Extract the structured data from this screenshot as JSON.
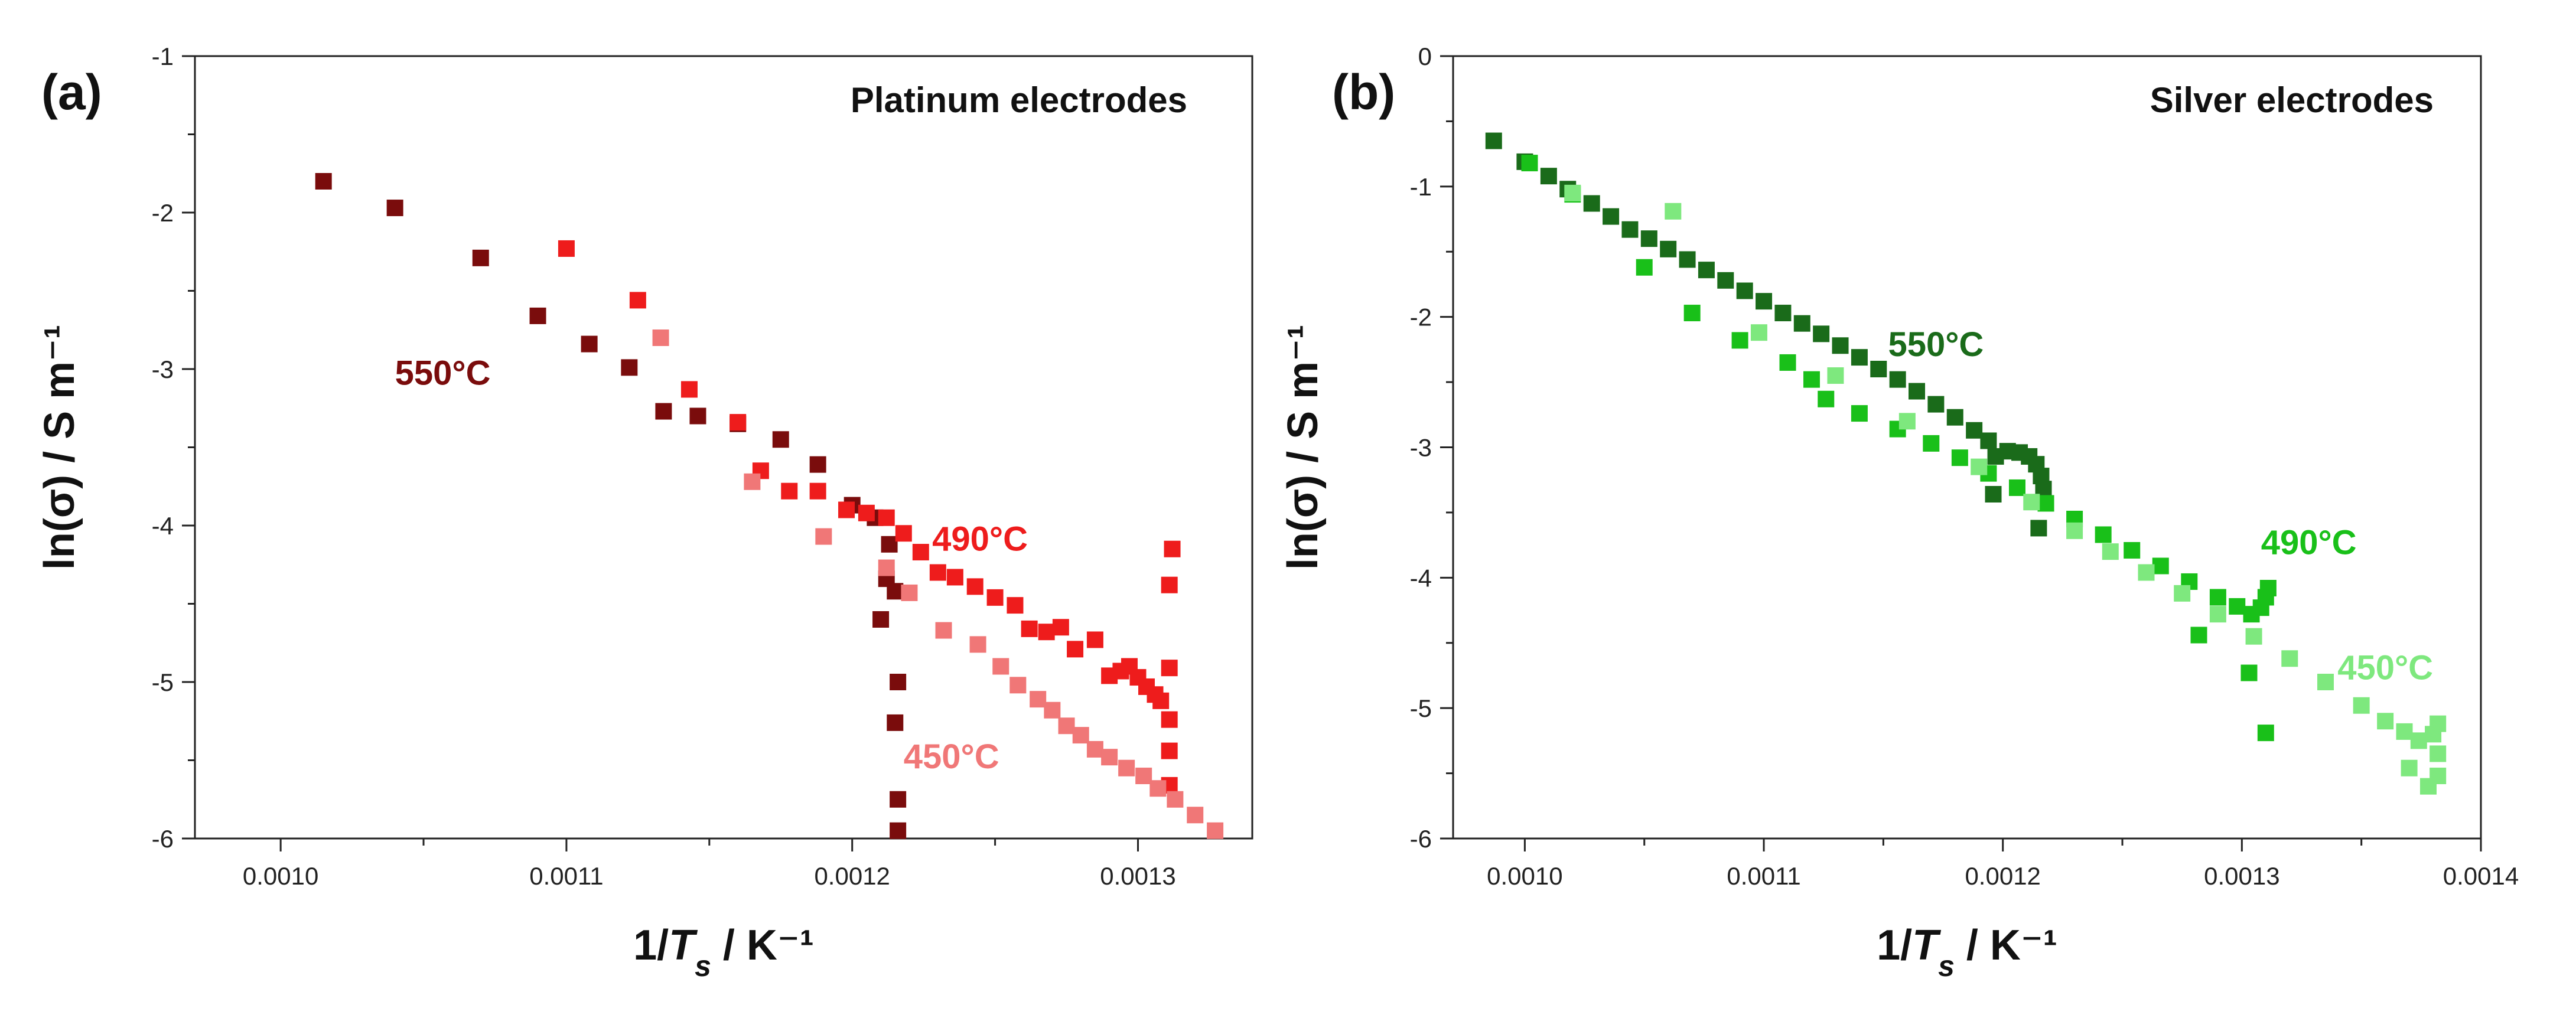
{
  "chart_data": [
    {
      "type": "scatter",
      "panel_label": "(a)",
      "title": "Platinum electrodes",
      "xlabel": "1/T_s / K⁻¹",
      "ylabel": "ln(σ) / S m⁻¹",
      "xlim": [
        0.00097,
        0.00134
      ],
      "ylim": [
        -6,
        -1
      ],
      "xticks": [
        0.001,
        0.0011,
        0.0012,
        0.0013
      ],
      "xtick_labels": [
        "0.0010",
        "0.0011",
        "0.0012",
        "0.0013"
      ],
      "yticks": [
        -6,
        -5,
        -4,
        -3,
        -2,
        -1
      ],
      "ytick_labels": [
        "-6",
        "-5",
        "-4",
        "-3",
        "-2",
        "-1"
      ],
      "grid": false,
      "series": [
        {
          "name": "550°C",
          "color": "#7a0c0c",
          "label_at": [
            0.00104,
            -3.1
          ],
          "points": [
            [
              0.001015,
              -1.8
            ],
            [
              0.00104,
              -1.97
            ],
            [
              0.00107,
              -2.29
            ],
            [
              0.00109,
              -2.66
            ],
            [
              0.001108,
              -2.84
            ],
            [
              0.001122,
              -2.99
            ],
            [
              0.001134,
              -3.27
            ],
            [
              0.001146,
              -3.3
            ],
            [
              0.00116,
              -3.35
            ],
            [
              0.001175,
              -3.45
            ],
            [
              0.001188,
              -3.61
            ],
            [
              0.0012,
              -3.87
            ],
            [
              0.001208,
              -3.95
            ],
            [
              0.001213,
              -4.12
            ],
            [
              0.001212,
              -4.34
            ],
            [
              0.00121,
              -4.6
            ],
            [
              0.001215,
              -4.42
            ],
            [
              0.001216,
              -5.0
            ],
            [
              0.001215,
              -5.26
            ],
            [
              0.001216,
              -5.75
            ],
            [
              0.001216,
              -5.95
            ]
          ]
        },
        {
          "name": "490°C",
          "color": "#ee1c1c",
          "label_at": [
            0.001228,
            -4.16
          ],
          "points": [
            [
              0.0011,
              -2.23
            ],
            [
              0.001125,
              -2.56
            ],
            [
              0.001143,
              -3.13
            ],
            [
              0.00116,
              -3.34
            ],
            [
              0.001168,
              -3.65
            ],
            [
              0.001178,
              -3.78
            ],
            [
              0.001188,
              -3.78
            ],
            [
              0.001198,
              -3.9
            ],
            [
              0.001205,
              -3.92
            ],
            [
              0.001212,
              -3.95
            ],
            [
              0.001218,
              -4.05
            ],
            [
              0.001224,
              -4.17
            ],
            [
              0.00123,
              -4.3
            ],
            [
              0.001236,
              -4.33
            ],
            [
              0.001243,
              -4.39
            ],
            [
              0.00125,
              -4.46
            ],
            [
              0.001257,
              -4.51
            ],
            [
              0.001262,
              -4.66
            ],
            [
              0.001268,
              -4.68
            ],
            [
              0.001273,
              -4.65
            ],
            [
              0.001278,
              -4.79
            ],
            [
              0.001285,
              -4.73
            ],
            [
              0.00129,
              -4.96
            ],
            [
              0.001294,
              -4.93
            ],
            [
              0.001297,
              -4.9
            ],
            [
              0.0013,
              -4.97
            ],
            [
              0.001303,
              -5.03
            ],
            [
              0.001306,
              -5.08
            ],
            [
              0.001308,
              -5.12
            ],
            [
              0.001311,
              -5.24
            ],
            [
              0.001311,
              -5.44
            ],
            [
              0.001311,
              -5.66
            ],
            [
              0.001311,
              -4.91
            ],
            [
              0.001311,
              -4.38
            ],
            [
              0.001312,
              -4.15
            ]
          ]
        },
        {
          "name": "450°C",
          "color": "#f07777",
          "label_at": [
            0.001218,
            -5.55
          ],
          "points": [
            [
              0.001133,
              -2.8
            ],
            [
              0.001165,
              -3.72
            ],
            [
              0.00119,
              -4.07
            ],
            [
              0.001212,
              -4.27
            ],
            [
              0.00122,
              -4.43
            ],
            [
              0.001232,
              -4.67
            ],
            [
              0.001244,
              -4.76
            ],
            [
              0.001252,
              -4.9
            ],
            [
              0.001258,
              -5.02
            ],
            [
              0.001265,
              -5.11
            ],
            [
              0.00127,
              -5.18
            ],
            [
              0.001275,
              -5.28
            ],
            [
              0.00128,
              -5.34
            ],
            [
              0.001285,
              -5.43
            ],
            [
              0.00129,
              -5.48
            ],
            [
              0.001296,
              -5.55
            ],
            [
              0.001302,
              -5.6
            ],
            [
              0.001307,
              -5.68
            ],
            [
              0.001313,
              -5.75
            ],
            [
              0.00132,
              -5.85
            ],
            [
              0.001327,
              -5.95
            ]
          ]
        }
      ]
    },
    {
      "type": "scatter",
      "panel_label": "(b)",
      "title": "Silver electrodes",
      "xlabel": "1/T_s / K⁻¹",
      "ylabel": "ln(σ) / S m⁻¹",
      "xlim": [
        0.00097,
        0.0014
      ],
      "ylim": [
        -6,
        0
      ],
      "xticks": [
        0.001,
        0.0011,
        0.0012,
        0.0013,
        0.0014
      ],
      "xtick_labels": [
        "0.0010",
        "0.0011",
        "0.0012",
        "0.0013",
        "0.0014"
      ],
      "yticks": [
        -6,
        -5,
        -4,
        -3,
        -2,
        -1,
        0
      ],
      "ytick_labels": [
        "-6",
        "-5",
        "-4",
        "-3",
        "-2",
        "-1",
        "0"
      ],
      "grid": false,
      "series": [
        {
          "name": "550°C",
          "color": "#1a6b1a",
          "label_at": [
            0.001152,
            -2.3
          ],
          "points": [
            [
              0.000987,
              -0.65
            ],
            [
              0.001,
              -0.81
            ],
            [
              0.00101,
              -0.92
            ],
            [
              0.001018,
              -1.02
            ],
            [
              0.001028,
              -1.13
            ],
            [
              0.001036,
              -1.23
            ],
            [
              0.001044,
              -1.33
            ],
            [
              0.001052,
              -1.4
            ],
            [
              0.00106,
              -1.48
            ],
            [
              0.001068,
              -1.56
            ],
            [
              0.001076,
              -1.64
            ],
            [
              0.001084,
              -1.72
            ],
            [
              0.001092,
              -1.8
            ],
            [
              0.0011,
              -1.88
            ],
            [
              0.001108,
              -1.97
            ],
            [
              0.001116,
              -2.05
            ],
            [
              0.001124,
              -2.13
            ],
            [
              0.001132,
              -2.22
            ],
            [
              0.00114,
              -2.31
            ],
            [
              0.001148,
              -2.4
            ],
            [
              0.001156,
              -2.48
            ],
            [
              0.001164,
              -2.57
            ],
            [
              0.001172,
              -2.67
            ],
            [
              0.00118,
              -2.77
            ],
            [
              0.001188,
              -2.87
            ],
            [
              0.001194,
              -2.95
            ],
            [
              0.001197,
              -3.07
            ],
            [
              0.001202,
              -3.03
            ],
            [
              0.001207,
              -3.04
            ],
            [
              0.001211,
              -3.07
            ],
            [
              0.001214,
              -3.13
            ],
            [
              0.001216,
              -3.22
            ],
            [
              0.001217,
              -3.32
            ],
            [
              0.001196,
              -3.36
            ],
            [
              0.001215,
              -3.62
            ]
          ]
        },
        {
          "name": "490°C",
          "color": "#19c019",
          "label_at": [
            0.001308,
            -3.82
          ],
          "points": [
            [
              0.001002,
              -0.82
            ],
            [
              0.00102,
              -1.06
            ],
            [
              0.00105,
              -1.62
            ],
            [
              0.00107,
              -1.97
            ],
            [
              0.00109,
              -2.18
            ],
            [
              0.00111,
              -2.35
            ],
            [
              0.00112,
              -2.48
            ],
            [
              0.001126,
              -2.63
            ],
            [
              0.00114,
              -2.74
            ],
            [
              0.001156,
              -2.86
            ],
            [
              0.00117,
              -2.97
            ],
            [
              0.001182,
              -3.08
            ],
            [
              0.001194,
              -3.2
            ],
            [
              0.001206,
              -3.31
            ],
            [
              0.001218,
              -3.43
            ],
            [
              0.00123,
              -3.55
            ],
            [
              0.001242,
              -3.67
            ],
            [
              0.001254,
              -3.79
            ],
            [
              0.001266,
              -3.91
            ],
            [
              0.001278,
              -4.03
            ],
            [
              0.00129,
              -4.15
            ],
            [
              0.001298,
              -4.22
            ],
            [
              0.001304,
              -4.28
            ],
            [
              0.001308,
              -4.23
            ],
            [
              0.00131,
              -4.15
            ],
            [
              0.001311,
              -4.08
            ],
            [
              0.001282,
              -4.44
            ],
            [
              0.001303,
              -4.73
            ],
            [
              0.00131,
              -5.19
            ]
          ]
        },
        {
          "name": "450°C",
          "color": "#7ee87e",
          "label_at": [
            0.00134,
            -4.78
          ],
          "points": [
            [
              0.00102,
              -1.05
            ],
            [
              0.001062,
              -1.19
            ],
            [
              0.001098,
              -2.12
            ],
            [
              0.00113,
              -2.45
            ],
            [
              0.00116,
              -2.8
            ],
            [
              0.00119,
              -3.15
            ],
            [
              0.001212,
              -3.42
            ],
            [
              0.00123,
              -3.64
            ],
            [
              0.001245,
              -3.8
            ],
            [
              0.00126,
              -3.96
            ],
            [
              0.001275,
              -4.12
            ],
            [
              0.00129,
              -4.28
            ],
            [
              0.001305,
              -4.45
            ],
            [
              0.00132,
              -4.62
            ],
            [
              0.001335,
              -4.8
            ],
            [
              0.00135,
              -4.98
            ],
            [
              0.00136,
              -5.1
            ],
            [
              0.001368,
              -5.18
            ],
            [
              0.001374,
              -5.25
            ],
            [
              0.00138,
              -5.2
            ],
            [
              0.001382,
              -5.12
            ],
            [
              0.001382,
              -5.35
            ],
            [
              0.001378,
              -5.6
            ],
            [
              0.001382,
              -5.52
            ],
            [
              0.00137,
              -5.46
            ]
          ]
        }
      ]
    }
  ]
}
